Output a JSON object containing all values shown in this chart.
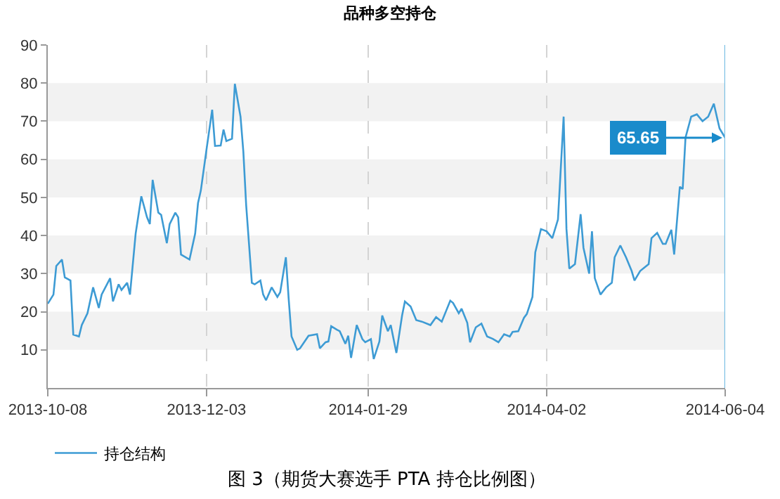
{
  "chart_data": {
    "type": "line",
    "title": "品种多空持仓",
    "x": [
      "2013-10-08",
      "2013-10-10",
      "2013-10-11",
      "2013-10-13",
      "2013-10-14",
      "2013-10-16",
      "2013-10-17",
      "2013-10-19",
      "2013-10-20",
      "2013-10-22",
      "2013-10-24",
      "2013-10-26",
      "2013-10-27",
      "2013-10-30",
      "2013-10-31",
      "2013-11-02",
      "2013-11-03",
      "2013-11-05",
      "2013-11-06",
      "2013-11-08",
      "2013-11-10",
      "2013-11-12",
      "2013-11-13",
      "2013-11-14",
      "2013-11-16",
      "2013-11-17",
      "2013-11-19",
      "2013-11-20",
      "2013-11-22",
      "2013-11-23",
      "2013-11-24",
      "2013-11-27",
      "2013-11-29",
      "2013-11-30",
      "2013-12-01",
      "2013-12-03",
      "2013-12-05",
      "2013-12-06",
      "2013-12-08",
      "2013-12-09",
      "2013-12-10",
      "2013-12-12",
      "2013-12-13",
      "2013-12-15",
      "2013-12-16",
      "2013-12-17",
      "2013-12-19",
      "2013-12-20",
      "2013-12-22",
      "2013-12-23",
      "2013-12-24",
      "2013-12-26",
      "2013-12-28",
      "2013-12-29",
      "2013-12-31",
      "2014-01-01",
      "2014-01-02",
      "2014-01-04",
      "2014-01-05",
      "2014-01-08",
      "2014-01-11",
      "2014-01-12",
      "2014-01-14",
      "2014-01-15",
      "2014-01-16",
      "2014-01-18",
      "2014-01-19",
      "2014-01-21",
      "2014-01-22",
      "2014-01-23",
      "2014-01-25",
      "2014-01-27",
      "2014-01-28",
      "2014-01-30",
      "2014-01-31",
      "2014-02-02",
      "2014-02-03",
      "2014-02-05",
      "2014-02-06",
      "2014-02-08",
      "2014-02-10",
      "2014-02-11",
      "2014-02-13",
      "2014-02-15",
      "2014-02-17",
      "2014-02-20",
      "2014-02-22",
      "2014-02-24",
      "2014-02-27",
      "2014-02-28",
      "2014-03-02",
      "2014-03-03",
      "2014-03-05",
      "2014-03-06",
      "2014-03-08",
      "2014-03-10",
      "2014-03-12",
      "2014-03-14",
      "2014-03-16",
      "2014-03-18",
      "2014-03-20",
      "2014-03-21",
      "2014-03-23",
      "2014-03-25",
      "2014-03-26",
      "2014-03-28",
      "2014-03-29",
      "2014-03-31",
      "2014-04-02",
      "2014-04-04",
      "2014-04-06",
      "2014-04-08",
      "2014-04-09",
      "2014-04-10",
      "2014-04-12",
      "2014-04-14",
      "2014-04-15",
      "2014-04-17",
      "2014-04-18",
      "2014-04-19",
      "2014-04-21",
      "2014-04-23",
      "2014-04-25",
      "2014-04-26",
      "2014-04-28",
      "2014-04-30",
      "2014-05-02",
      "2014-05-03",
      "2014-05-05",
      "2014-05-08",
      "2014-05-09",
      "2014-05-11",
      "2014-05-13",
      "2014-05-14",
      "2014-05-16",
      "2014-05-17",
      "2014-05-19",
      "2014-05-20",
      "2014-05-21",
      "2014-05-23",
      "2014-05-25",
      "2014-05-27",
      "2014-05-29",
      "2014-05-31",
      "2014-06-02",
      "2014-06-04"
    ],
    "series": [
      {
        "name": "持仓结构",
        "color": "#3d9bd4",
        "values": [
          22.1,
          24.5,
          32,
          33.7,
          29,
          28.2,
          14,
          13.5,
          16.5,
          19.6,
          26.4,
          21,
          24.5,
          28.8,
          22.7,
          27.2,
          25.7,
          27.6,
          24.5,
          40.5,
          50.3,
          44.8,
          43,
          54.6,
          46,
          45.4,
          38,
          43,
          46,
          44.8,
          35,
          33.7,
          40.5,
          48.5,
          51.8,
          62.6,
          73,
          63.5,
          63.6,
          67.8,
          64.8,
          65.4,
          79.8,
          71.2,
          62,
          47.9,
          27.6,
          27.2,
          28.2,
          24.5,
          23,
          26.4,
          23.9,
          25.1,
          34.3,
          23.3,
          13.5,
          10,
          10.4,
          13.7,
          14.1,
          10.4,
          12,
          12.2,
          16.2,
          15.3,
          14.9,
          11.6,
          13.7,
          7.9,
          16.5,
          12.8,
          12,
          12.8,
          7.6,
          12.2,
          19,
          14.9,
          16.5,
          9.2,
          19,
          22.7,
          21.4,
          17.8,
          17.4,
          16.5,
          18.6,
          17.4,
          22.9,
          22.3,
          19.6,
          20.8,
          17.1,
          12,
          15.9,
          16.9,
          13.5,
          12.9,
          12,
          14.1,
          13.5,
          14.7,
          14.9,
          18.4,
          19.4,
          23.9,
          35.6,
          41.7,
          41.1,
          39.3,
          44.2,
          71.2,
          41.7,
          31.3,
          32.5,
          45.6,
          36.8,
          30,
          41.1,
          28.8,
          24.5,
          26.4,
          27.6,
          34.3,
          37.4,
          34.3,
          30.7,
          28.2,
          30.7,
          32.5,
          39.3,
          40.7,
          37.8,
          37.8,
          41.5,
          35,
          52.8,
          52.2,
          65.7,
          71.2,
          71.8,
          70,
          71.2,
          74.6,
          68.1,
          65.65
        ]
      }
    ],
    "xlim": [
      "2013-10-08",
      "2014-06-04"
    ],
    "xticks": [
      {
        "value": "2013-10-08",
        "label": "2013-10-08"
      },
      {
        "value": "2013-12-03",
        "label": "2013-12-03"
      },
      {
        "value": "2014-01-29",
        "label": "2014-01-29"
      },
      {
        "value": "2014-04-02",
        "label": "2014-04-02"
      },
      {
        "value": "2014-06-04",
        "label": "2014-06-04"
      }
    ],
    "ylim": [
      0,
      90
    ],
    "yticks": [
      10,
      20,
      30,
      40,
      50,
      60,
      70,
      80,
      90
    ],
    "grid": "x",
    "bands": [
      {
        "axis": "y",
        "from": 10,
        "to": 20,
        "color": "#f2f2f2"
      },
      {
        "axis": "y",
        "from": 30,
        "to": 40,
        "color": "#f2f2f2"
      },
      {
        "axis": "y",
        "from": 50,
        "to": 60,
        "color": "#f2f2f2"
      },
      {
        "axis": "y",
        "from": 70,
        "to": 80,
        "color": "#f2f2f2"
      }
    ],
    "ref_lines": [
      {
        "axis": "x",
        "value": "2014-06-04",
        "color": "#7cc0e4"
      }
    ],
    "annotations": [
      {
        "text": "65.65",
        "x": "2014-06-04",
        "y": 65.65
      },
      "图 3（期货大赛选手 PTA 持仓比例图）"
    ],
    "legend": "bottom left",
    "marker": "none",
    "line_style": "solid"
  }
}
